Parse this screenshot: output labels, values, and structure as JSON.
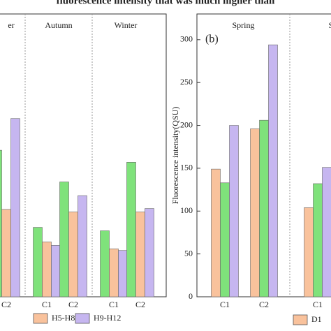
{
  "caption": "fluorescence intensity that was much higher than",
  "chart_data": [
    {
      "type": "bar",
      "seasons": [
        {
          "label": "er",
          "categories": [
            "C2"
          ]
        },
        {
          "label": "Autumn",
          "categories": [
            "C1",
            "C2"
          ]
        },
        {
          "label": "Winter",
          "categories": [
            "C1",
            "C2"
          ]
        }
      ],
      "ylim": [
        0,
        330
      ],
      "series": [
        {
          "color": "#7fe27b",
          "values": [
            171,
            81,
            134,
            77,
            157
          ]
        },
        {
          "name": "H5-H8",
          "color": "#f9c29c",
          "values": [
            102,
            64,
            99,
            56,
            99
          ]
        },
        {
          "name": "H9-H12",
          "color": "#c6b6f0",
          "values": [
            208,
            60,
            118,
            54,
            103
          ]
        }
      ]
    },
    {
      "type": "bar",
      "panel_label": "(b)",
      "y_label": "Fluorescence intensity(QSU)",
      "seasons": [
        {
          "label": "Spring",
          "categories": [
            "C1",
            "C2"
          ]
        },
        {
          "label": "Sum",
          "categories": [
            "C1"
          ]
        }
      ],
      "ylim": [
        0,
        330
      ],
      "yticks": [
        0,
        50,
        100,
        150,
        200,
        250,
        300
      ],
      "series": [
        {
          "name": "D1",
          "color": "#f9c29c",
          "values": [
            149,
            196,
            104
          ]
        },
        {
          "color": "#7fe27b",
          "values": [
            133,
            206,
            132
          ]
        },
        {
          "color": "#c6b6f0",
          "values": [
            200,
            294,
            151
          ]
        }
      ]
    }
  ]
}
